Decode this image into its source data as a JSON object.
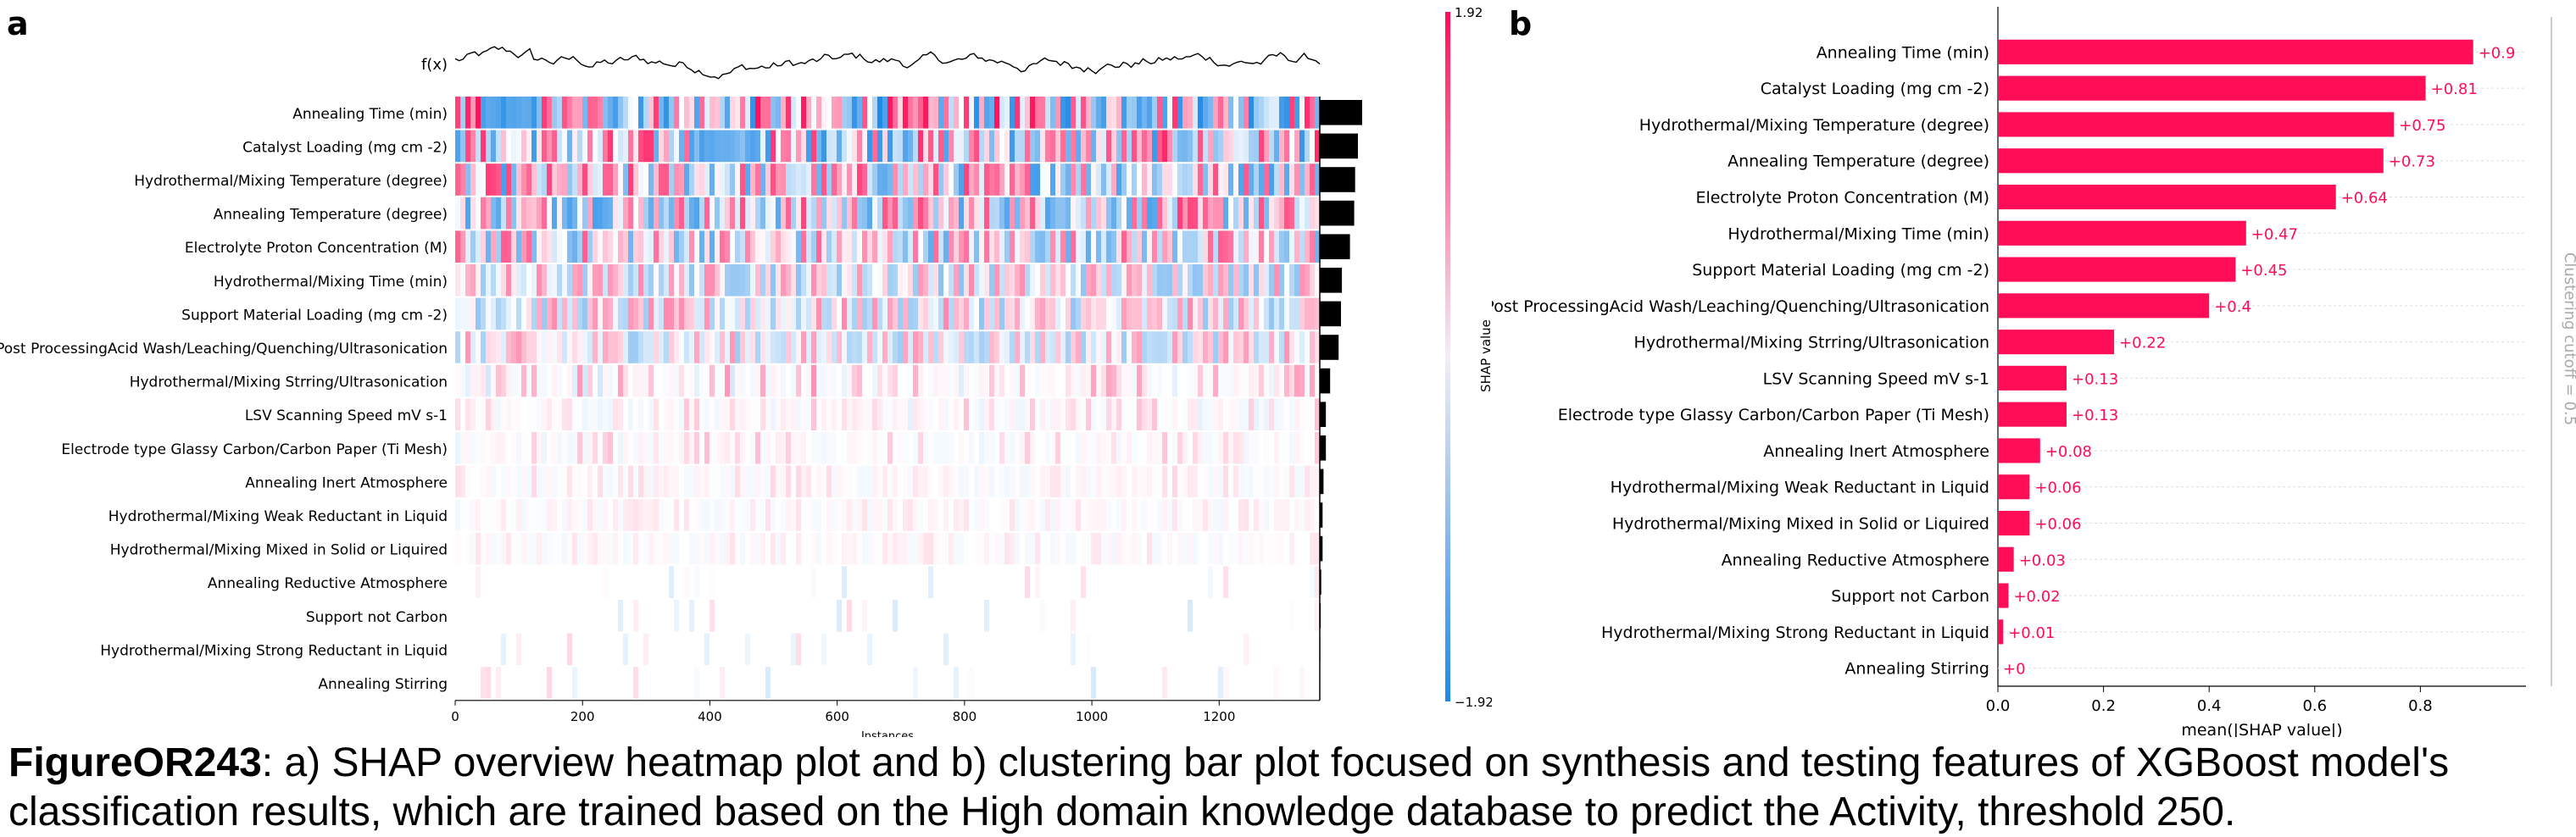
{
  "panel_a_letter": "a",
  "panel_b_letter": "b",
  "caption": {
    "figure_id": "FigureOR243",
    "text": ": a) SHAP overview heatmap plot and b) clustering bar plot focused on synthesis and testing features of XGBoost model's classification results, which are trained based on the High domain knowledge database to predict the Activity, threshold 250."
  },
  "chart_data": [
    {
      "type": "heatmap",
      "fx_label": "f(x)",
      "xlabel": "Instances",
      "ylabel": "",
      "xticks": [
        0,
        200,
        400,
        600,
        800,
        1000,
        1200
      ],
      "xlim": [
        0,
        1358
      ],
      "colorbar": {
        "label": "SHAP value",
        "max_label": "1.92",
        "min_label": "−1.92",
        "max": 1.92,
        "min": -1.92,
        "high_color": "#ff0d57",
        "low_color": "#1e88e5"
      },
      "features": [
        "Annealing Time (min)",
        "Catalyst Loading (mg cm -2)",
        "Hydrothermal/Mixing Temperature (degree)",
        "Annealing Temperature (degree)",
        "Electrolyte Proton Concentration (M)",
        "Hydrothermal/Mixing Time (min)",
        "Support Material Loading (mg cm -2)",
        "Post ProcessingAcid Wash/Leaching/Quenching/Ultrasonication",
        "Hydrothermal/Mixing Strring/Ultrasonication",
        "LSV Scanning Speed mV s-1",
        "Electrode type Glassy Carbon/Carbon Paper (Ti Mesh)",
        "Annealing Inert Atmosphere",
        "Hydrothermal/Mixing Weak Reductant in Liquid",
        "Hydrothermal/Mixing Mixed in Solid or Liquired",
        "Annealing Reductive Atmosphere",
        "Support not Carbon",
        "Hydrothermal/Mixing Strong Reductant in Liquid",
        "Annealing Stirring"
      ],
      "importance": [
        0.9,
        0.81,
        0.75,
        0.73,
        0.64,
        0.47,
        0.45,
        0.4,
        0.22,
        0.13,
        0.13,
        0.08,
        0.06,
        0.06,
        0.03,
        0.02,
        0.01,
        0.0
      ]
    },
    {
      "type": "bar",
      "orientation": "horizontal",
      "categories": [
        "Annealing Time (min)",
        "Catalyst Loading (mg cm -2)",
        "Hydrothermal/Mixing Temperature (degree)",
        "Annealing Temperature (degree)",
        "Electrolyte Proton Concentration (M)",
        "Hydrothermal/Mixing Time (min)",
        "Support Material Loading (mg cm -2)",
        "Post ProcessingAcid Wash/Leaching/Quenching/Ultrasonication",
        "Hydrothermal/Mixing Strring/Ultrasonication",
        "LSV Scanning Speed mV s-1",
        "Electrode type Glassy Carbon/Carbon Paper (Ti Mesh)",
        "Annealing Inert Atmosphere",
        "Hydrothermal/Mixing Weak Reductant in Liquid",
        "Hydrothermal/Mixing Mixed in Solid or Liquired",
        "Annealing Reductive Atmosphere",
        "Support not Carbon",
        "Hydrothermal/Mixing Strong Reductant in Liquid",
        "Annealing Stirring"
      ],
      "values": [
        0.9,
        0.81,
        0.75,
        0.73,
        0.64,
        0.47,
        0.45,
        0.4,
        0.22,
        0.13,
        0.13,
        0.08,
        0.06,
        0.06,
        0.03,
        0.02,
        0.01,
        0.0
      ],
      "value_labels": [
        "+0.9",
        "+0.81",
        "+0.75",
        "+0.73",
        "+0.64",
        "+0.47",
        "+0.45",
        "+0.4",
        "+0.22",
        "+0.13",
        "+0.13",
        "+0.08",
        "+0.06",
        "+0.06",
        "+0.03",
        "+0.02",
        "+0.01",
        "+0"
      ],
      "xlabel": "mean(|SHAP value|)",
      "xticks": [
        0.0,
        0.2,
        0.4,
        0.6,
        0.8
      ],
      "xtick_labels": [
        "0.0",
        "0.2",
        "0.4",
        "0.6",
        "0.8"
      ],
      "xlim": [
        0,
        1.0
      ],
      "bar_color": "#ff0d57",
      "cutoff_label": "Clustering cutoff = 0.5"
    }
  ]
}
